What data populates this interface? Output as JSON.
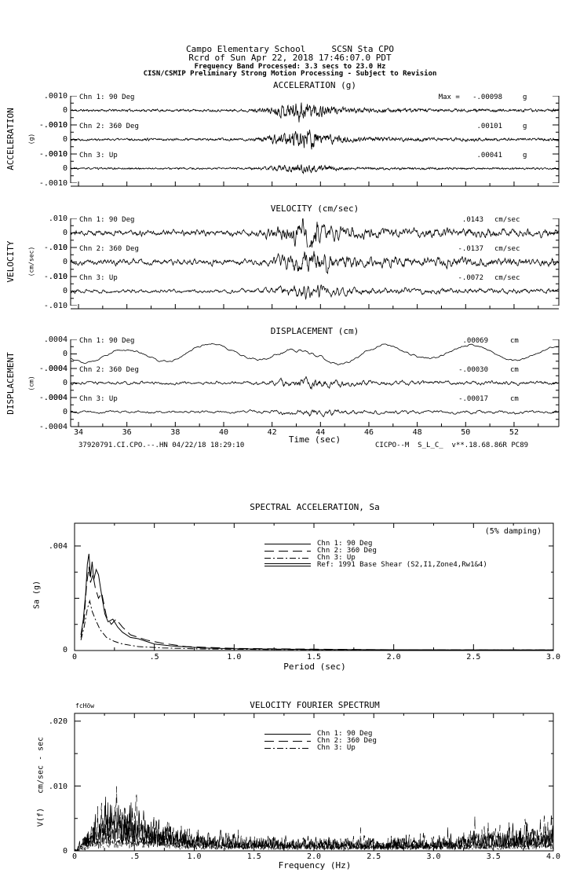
{
  "header": {
    "line1": "Campo Elementary School     SCSN Sta CPO",
    "line2": "Rcrd of Sun Apr 22, 2018 17:46:07.0 PDT",
    "line3": "Frequency Band Processed: 3.3 secs to 23.0 Hz",
    "line4": "CISN/CSMIP Preliminary Strong Motion Processing - Subject to Revision"
  },
  "footer": {
    "left": "37920791.CI.CPO.--.HN 04/22/18 18:29:10",
    "right": "CICPO--M  S_L_C_  v**.18.68.86R PC89"
  },
  "chart_data": [
    {
      "id": "acceleration",
      "type": "line",
      "title": "ACCELERATION (g)",
      "side_label": "ACCELERATION",
      "side_unit": "(g)",
      "xlim": [
        33.7,
        53.8
      ],
      "xticks": [
        34,
        36,
        38,
        40,
        42,
        44,
        46,
        48,
        50,
        52
      ],
      "ytick_labels": [
        ".0010",
        "0",
        "-.0010"
      ],
      "yhalf": 0.001,
      "series": [
        {
          "label": "Chn 1: 90 Deg",
          "max_text": "Max =   -.00098",
          "unit": "g",
          "peak": -0.00098,
          "gen": {
            "seed": 11,
            "f1": 0.25,
            "f2": 0.35,
            "base": 0.00012,
            "amp": 0.00075,
            "tc": 43.1,
            "w": 0.8,
            "coda": 0.3,
            "tau": 3.5
          }
        },
        {
          "label": "Chn 2: 360 Deg",
          "max_text": ".00101",
          "unit": "g",
          "peak": 0.00101,
          "gen": {
            "seed": 22,
            "f1": 0.25,
            "f2": 0.35,
            "base": 0.00012,
            "amp": 0.0008,
            "tc": 43.1,
            "w": 0.8,
            "coda": 0.35,
            "tau": 3.5
          }
        },
        {
          "label": "Chn 3: Up",
          "max_text": ".00041",
          "unit": "g",
          "peak": 0.00041,
          "gen": {
            "seed": 33,
            "f1": 0.25,
            "f2": 0.35,
            "base": 9e-05,
            "amp": 0.00028,
            "tc": 43.1,
            "w": 0.9,
            "coda": 0.3,
            "tau": 3.5
          }
        }
      ]
    },
    {
      "id": "velocity",
      "type": "line",
      "title": "VELOCITY (cm/sec)",
      "side_label": "VELOCITY",
      "side_unit": "(cm/sec)",
      "xlim": [
        33.7,
        53.8
      ],
      "xticks": [
        34,
        36,
        38,
        40,
        42,
        44,
        46,
        48,
        50,
        52
      ],
      "ytick_labels": [
        ".010",
        "0",
        "-.010"
      ],
      "yhalf": 0.01,
      "series": [
        {
          "label": "Chn 1: 90 Deg",
          "max_text": ".0143",
          "unit": "cm/sec",
          "peak": 0.0143,
          "gen": {
            "seed": 44,
            "f1": 0.55,
            "f2": 0.5,
            "base": 0.0028,
            "amp": 0.0082,
            "tc": 43.2,
            "w": 0.8,
            "coda": 0.45,
            "tau": 7
          }
        },
        {
          "label": "Chn 2: 360 Deg",
          "max_text": "-.0137",
          "unit": "cm/sec",
          "peak": -0.0137,
          "gen": {
            "seed": 55,
            "f1": 0.55,
            "f2": 0.5,
            "base": 0.0028,
            "amp": 0.008,
            "tc": 43.2,
            "w": 0.8,
            "coda": 0.45,
            "tau": 7
          }
        },
        {
          "label": "Chn 3: Up",
          "max_text": "-.0072",
          "unit": "cm/sec",
          "peak": -0.0072,
          "gen": {
            "seed": 66,
            "f1": 0.55,
            "f2": 0.5,
            "base": 0.0018,
            "amp": 0.0042,
            "tc": 43.2,
            "w": 0.9,
            "coda": 0.5,
            "tau": 8
          }
        }
      ]
    },
    {
      "id": "displacement",
      "type": "line",
      "title": "DISPLACEMENT (cm)",
      "side_label": "DISPLACEMENT",
      "side_unit": "(cm)",
      "xlabel": "Time (sec)",
      "xlim": [
        33.7,
        53.8
      ],
      "xticks": [
        34,
        36,
        38,
        40,
        42,
        44,
        46,
        48,
        50,
        52
      ],
      "xtick_labels": [
        "34",
        "36",
        "38",
        "40",
        "42",
        "44",
        "46",
        "48",
        "50",
        "52"
      ],
      "ytick_labels": [
        ".0004",
        "0",
        "-.0004"
      ],
      "yhalf": 0.0004,
      "series": [
        {
          "label": "Chn 1: 90 Deg",
          "max_text": ".00069",
          "unit": "cm",
          "peak": 0.00069,
          "gen": {
            "seed": 71,
            "f1": 0.8,
            "f2": 0.75,
            "base": 5e-05,
            "amp": 4e-05,
            "tc": 43.1,
            "w": 1.0,
            "coda": 0.2,
            "tau": 5,
            "slow": {
              "a1": 0.0002,
              "p1": 3.55,
              "ph1": 0.8,
              "a2": 9e-05,
              "p2": 8.1,
              "ph2": 2.1,
              "end": 0.00016,
              "endT": 51.4
            }
          }
        },
        {
          "label": "Chn 2: 360 Deg",
          "max_text": "-.00030",
          "unit": "cm",
          "peak": -0.0003,
          "gen": {
            "seed": 72,
            "f1": 0.6,
            "f2": 0.55,
            "base": 6e-05,
            "amp": 0.00013,
            "tc": 43.2,
            "w": 0.9,
            "coda": 0.5,
            "tau": 6
          }
        },
        {
          "label": "Chn 3: Up",
          "max_text": "-.00017",
          "unit": "cm",
          "peak": -0.00017,
          "gen": {
            "seed": 73,
            "f1": 0.7,
            "f2": 0.6,
            "base": 5e-05,
            "amp": 8e-05,
            "tc": 43.5,
            "w": 1.2,
            "coda": 0.6,
            "tau": 7
          }
        }
      ]
    },
    {
      "id": "spectral_acceleration",
      "type": "line",
      "title": "SPECTRAL ACCELERATION, Sa",
      "annotation": "(5% damping)",
      "xlabel": "Period (sec)",
      "ylabel": "Sa (g)",
      "xlim": [
        0,
        3.0
      ],
      "xtick_labels": [
        "0",
        ".5",
        "1.0",
        "1.5",
        "2.0",
        "2.5",
        "3.0"
      ],
      "ytick_labels": [
        ".004",
        "0"
      ],
      "ylim": [
        0,
        0.00487
      ],
      "legend": [
        {
          "label": "Chn 1: 90 Deg",
          "dash": ""
        },
        {
          "label": "Chn 2: 360 Deg",
          "dash": "12 6"
        },
        {
          "label": "Chn 3: Up",
          "dash": "8 3 2 3"
        },
        {
          "label": "Ref: 1991 Base Shear (S2,I1,Zone4,Rw1&4)",
          "dash": "",
          "double": true
        }
      ],
      "series": [
        {
          "name": "Chn 1: 90 Deg",
          "dash": "",
          "points": [
            [
              0.04,
              0.0006
            ],
            [
              0.055,
              0.0012
            ],
            [
              0.07,
              0.0022
            ],
            [
              0.08,
              0.0033
            ],
            [
              0.09,
              0.0037
            ],
            [
              0.1,
              0.0028
            ],
            [
              0.11,
              0.0034
            ],
            [
              0.12,
              0.0027
            ],
            [
              0.135,
              0.0031
            ],
            [
              0.15,
              0.0029
            ],
            [
              0.17,
              0.0021
            ],
            [
              0.19,
              0.0014
            ],
            [
              0.21,
              0.0011
            ],
            [
              0.24,
              0.0012
            ],
            [
              0.27,
              0.0009
            ],
            [
              0.3,
              0.0007
            ],
            [
              0.35,
              0.0005
            ],
            [
              0.4,
              0.00045
            ],
            [
              0.5,
              0.00025
            ],
            [
              0.6,
              0.00018
            ],
            [
              0.8,
              0.0001
            ],
            [
              1.0,
              7e-05
            ],
            [
              1.5,
              4e-05
            ],
            [
              2.0,
              3e-05
            ],
            [
              2.5,
              2e-05
            ],
            [
              3.0,
              2e-05
            ]
          ]
        },
        {
          "name": "Chn 2: 360 Deg",
          "dash": "12 6",
          "points": [
            [
              0.04,
              0.0005
            ],
            [
              0.06,
              0.0012
            ],
            [
              0.075,
              0.0025
            ],
            [
              0.09,
              0.0032
            ],
            [
              0.1,
              0.0026
            ],
            [
              0.115,
              0.0029
            ],
            [
              0.13,
              0.0024
            ],
            [
              0.15,
              0.002
            ],
            [
              0.17,
              0.0022
            ],
            [
              0.2,
              0.0013
            ],
            [
              0.23,
              0.001
            ],
            [
              0.26,
              0.0012
            ],
            [
              0.3,
              0.0009
            ],
            [
              0.35,
              0.0006
            ],
            [
              0.45,
              0.0004
            ],
            [
              0.55,
              0.00028
            ],
            [
              0.7,
              0.00015
            ],
            [
              1.0,
              8e-05
            ],
            [
              1.5,
              5e-05
            ],
            [
              2.0,
              3e-05
            ],
            [
              3.0,
              2e-05
            ]
          ]
        },
        {
          "name": "Chn 3: Up",
          "dash": "8 3 2 3",
          "points": [
            [
              0.04,
              0.0004
            ],
            [
              0.06,
              0.0009
            ],
            [
              0.08,
              0.0016
            ],
            [
              0.095,
              0.0019
            ],
            [
              0.11,
              0.0015
            ],
            [
              0.13,
              0.0012
            ],
            [
              0.16,
              0.0008
            ],
            [
              0.2,
              0.0005
            ],
            [
              0.25,
              0.00035
            ],
            [
              0.3,
              0.00025
            ],
            [
              0.4,
              0.00015
            ],
            [
              0.55,
              0.0001
            ],
            [
              0.8,
              6e-05
            ],
            [
              1.2,
              4e-05
            ],
            [
              2.0,
              2e-05
            ],
            [
              3.0,
              2e-05
            ]
          ]
        }
      ]
    },
    {
      "id": "velocity_fourier_spectrum",
      "type": "line",
      "title": "VELOCITY FOURIER SPECTRUM",
      "corner_text": "fcHöw",
      "xlabel": "Frequency (Hz)",
      "ylabel": "V(f)   cm/sec - sec",
      "xlim": [
        0,
        4.0
      ],
      "xtick_labels": [
        "0",
        ".5",
        "1.0",
        "1.5",
        "2.0",
        "2.5",
        "3.0",
        "3.5",
        "4.0"
      ],
      "ytick_labels": [
        ".020",
        ".010",
        "0"
      ],
      "ylim": [
        0,
        0.0212
      ],
      "legend": [
        {
          "label": "Chn 1: 90 Deg",
          "dash": ""
        },
        {
          "label": "Chn 2: 360 Deg",
          "dash": "12 6"
        },
        {
          "label": "Chn 3: Up",
          "dash": "8 3 2 3"
        }
      ],
      "series": [
        {
          "name": "Chn 1: 90 Deg",
          "dash": "",
          "seed": 101,
          "envelope": [
            [
              0.02,
              0.0002
            ],
            [
              0.1,
              0.003
            ],
            [
              0.18,
              0.005
            ],
            [
              0.25,
              0.0068
            ],
            [
              0.35,
              0.0072
            ],
            [
              0.45,
              0.0068
            ],
            [
              0.55,
              0.005
            ],
            [
              0.7,
              0.0035
            ],
            [
              0.9,
              0.0028
            ],
            [
              1.1,
              0.0022
            ],
            [
              1.4,
              0.0018
            ],
            [
              1.8,
              0.0016
            ],
            [
              2.2,
              0.0015
            ],
            [
              2.6,
              0.0014
            ],
            [
              3.0,
              0.0015
            ],
            [
              3.5,
              0.002
            ],
            [
              4.0,
              0.0032
            ]
          ]
        },
        {
          "name": "Chn 2: 360 Deg",
          "dash": "12 6",
          "seed": 102,
          "envelope": [
            [
              0.02,
              0.0002
            ],
            [
              0.12,
              0.0035
            ],
            [
              0.22,
              0.0055
            ],
            [
              0.3,
              0.0068
            ],
            [
              0.4,
              0.0072
            ],
            [
              0.5,
              0.006
            ],
            [
              0.65,
              0.0042
            ],
            [
              0.85,
              0.003
            ],
            [
              1.1,
              0.0022
            ],
            [
              1.5,
              0.0018
            ],
            [
              2.0,
              0.0016
            ],
            [
              2.5,
              0.0017
            ],
            [
              3.0,
              0.002
            ],
            [
              3.5,
              0.0032
            ],
            [
              4.0,
              0.0045
            ]
          ]
        },
        {
          "name": "Chn 3: Up",
          "dash": "8 3 2 3",
          "seed": 103,
          "envelope": [
            [
              0.02,
              0.0001
            ],
            [
              0.15,
              0.0018
            ],
            [
              0.3,
              0.0028
            ],
            [
              0.5,
              0.0026
            ],
            [
              0.7,
              0.002
            ],
            [
              1.0,
              0.0014
            ],
            [
              1.5,
              0.0011
            ],
            [
              2.0,
              0.001
            ],
            [
              2.5,
              0.001
            ],
            [
              3.0,
              0.0011
            ],
            [
              3.5,
              0.0012
            ],
            [
              4.0,
              0.0015
            ]
          ]
        }
      ]
    }
  ]
}
